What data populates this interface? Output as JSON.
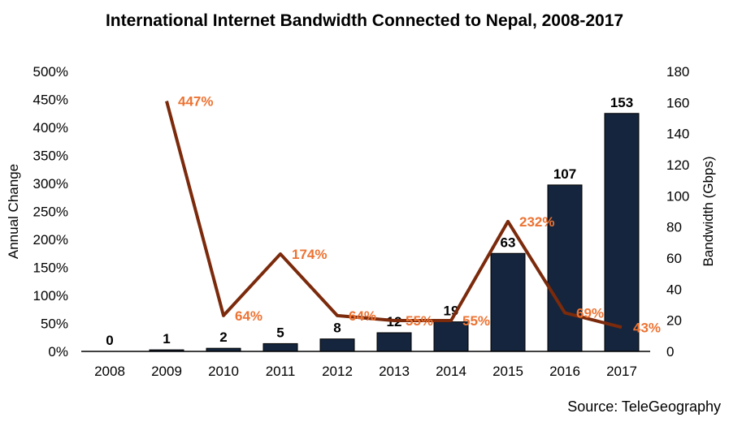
{
  "chart_data": {
    "type": "bar+line",
    "title": "International Internet Bandwidth Connected to Nepal, 2008-2017",
    "source": "Source: TeleGeography",
    "categories": [
      "2008",
      "2009",
      "2010",
      "2011",
      "2012",
      "2013",
      "2014",
      "2015",
      "2016",
      "2017"
    ],
    "bandwidth": {
      "name": "Bandwidth (Gbps)",
      "values": [
        0,
        1,
        2,
        5,
        8,
        12,
        19,
        63,
        107,
        153
      ],
      "labels": [
        "0",
        "1",
        "2",
        "5",
        "8",
        "12",
        "19",
        "63",
        "107",
        "153"
      ],
      "axis": "right",
      "ylim": [
        0,
        180
      ],
      "ticks": [
        "0",
        "20",
        "40",
        "60",
        "80",
        "100",
        "120",
        "140",
        "160",
        "180"
      ],
      "ylabel": "Bandwidth (Gbps)",
      "color": "#14253d"
    },
    "annual_change": {
      "name": "Annual Change",
      "values": [
        null,
        447,
        64,
        174,
        64,
        55,
        55,
        232,
        69,
        43
      ],
      "labels": [
        "",
        "447%",
        "64%",
        "174%",
        "64%",
        "55%",
        "55%",
        "232%",
        "69%",
        "43%"
      ],
      "axis": "left",
      "ylim": [
        0,
        500
      ],
      "ticks": [
        "0%",
        "50%",
        "100%",
        "150%",
        "200%",
        "250%",
        "300%",
        "350%",
        "400%",
        "450%",
        "500%"
      ],
      "ylabel": "Annual Change",
      "line_color": "#7b2a0c",
      "label_color": "#ec7333"
    }
  }
}
